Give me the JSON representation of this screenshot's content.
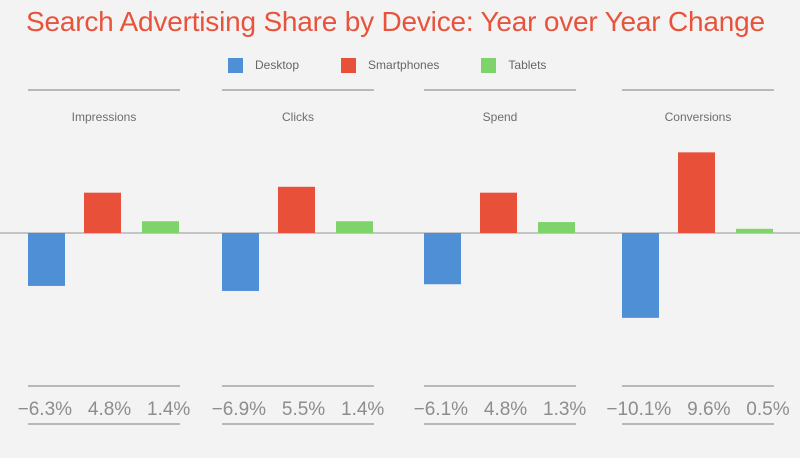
{
  "title": "Search Advertising Share by Device: Year over Year Change",
  "colors": {
    "title": "#e8533c",
    "Desktop": "#4f8fd6",
    "Smartphones": "#e8503a",
    "Tablets": "#7ed46b",
    "rule": "#a5a5a8",
    "baseline": "#a8a8ab",
    "label": "#6d6d6f",
    "value": "#8d8d90"
  },
  "legend": [
    {
      "label": "Desktop"
    },
    {
      "label": "Smartphones"
    },
    {
      "label": "Tablets"
    }
  ],
  "chart_data": {
    "type": "bar",
    "categories": [
      "Impressions",
      "Clicks",
      "Spend",
      "Conversions"
    ],
    "series": [
      {
        "name": "Desktop",
        "values": [
          -6.3,
          -6.9,
          -6.1,
          -10.1
        ]
      },
      {
        "name": "Smartphones",
        "values": [
          4.8,
          5.5,
          4.8,
          9.6
        ]
      },
      {
        "name": "Tablets",
        "values": [
          1.4,
          1.4,
          1.3,
          0.5
        ]
      }
    ],
    "value_labels": [
      [
        "−6.3%",
        "4.8%",
        "1.4%"
      ],
      [
        "−6.9%",
        "5.5%",
        "1.4%"
      ],
      [
        "−6.1%",
        "4.8%",
        "1.3%"
      ],
      [
        "−10.1%",
        "9.6%",
        "0.5%"
      ]
    ],
    "title": "Search Advertising Share by Device: Year over Year Change",
    "xlabel": "",
    "ylabel": "",
    "unit": "%",
    "grid": false,
    "legend_position": "top-center"
  }
}
